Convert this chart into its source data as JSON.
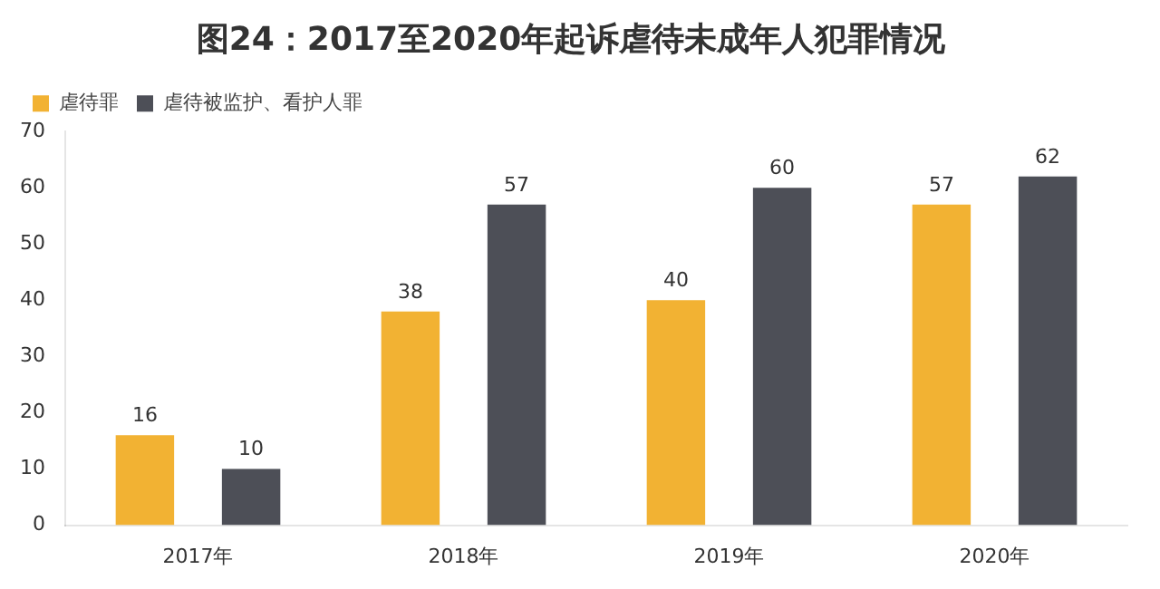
{
  "chart_data": {
    "type": "bar",
    "title": "图24：2017至2020年起诉虐待未成年人犯罪情况",
    "categories": [
      "2017年",
      "2018年",
      "2019年",
      "2020年"
    ],
    "series": [
      {
        "name": "虐待罪",
        "color": "#f2b233",
        "values": [
          16,
          38,
          40,
          57
        ]
      },
      {
        "name": "虐待被监护、看护人罪",
        "color": "#4d4f57",
        "values": [
          10,
          57,
          60,
          62
        ]
      }
    ],
    "ylim": [
      0,
      70
    ],
    "yticks": [
      0,
      10,
      20,
      30,
      40,
      50,
      60,
      70
    ],
    "grid": false,
    "legend": "top left",
    "data_labels": true
  }
}
